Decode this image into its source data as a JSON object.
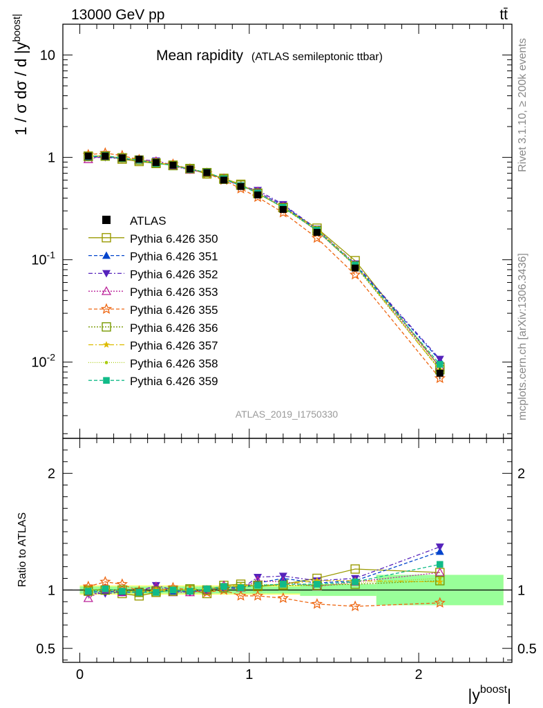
{
  "header": {
    "energy_label": "13000 GeV pp",
    "process_label": "tt̄"
  },
  "side_text": {
    "rivet_label": "Rivet 3.1.10, ≥ 200k events",
    "source_label": "mcplots.cern.ch [arXiv:1306.3436]"
  },
  "chart_data": {
    "type": "line",
    "title": "Mean rapidity",
    "subtitle": "(ATLAS semileptonic ttbar)",
    "analysis_label": "ATLAS_2019_I1750330",
    "xlabel": "|y^boost|",
    "ylabel": "1 / σ dσ / d |y^boost|",
    "ratio_ylabel": "Ratio to ATLAS",
    "xlim": [
      -0.1,
      2.55
    ],
    "ylim": [
      0.0018,
      20
    ],
    "ratio_ylim": [
      0.38,
      2.3
    ],
    "y_scale": "log",
    "x_ticks": [
      0,
      1,
      2
    ],
    "main_y_tick_labels": [
      "10^-2",
      "10^-1",
      "1",
      "10"
    ],
    "ratio_y_ticks": [
      0.5,
      1,
      2
    ],
    "legend_position": "center-left",
    "x": [
      0.05,
      0.15,
      0.25,
      0.35,
      0.45,
      0.55,
      0.65,
      0.75,
      0.85,
      0.95,
      1.05,
      1.2,
      1.4,
      1.625,
      2.125
    ],
    "bin_edges": [
      0.0,
      0.1,
      0.2,
      0.3,
      0.4,
      0.5,
      0.6,
      0.7,
      0.8,
      0.9,
      1.0,
      1.1,
      1.3,
      1.5,
      1.75,
      2.5
    ],
    "data": {
      "name": "ATLAS",
      "values": [
        1.03,
        1.03,
        0.99,
        0.96,
        0.89,
        0.84,
        0.77,
        0.71,
        0.6,
        0.52,
        0.43,
        0.31,
        0.185,
        0.083,
        0.0078
      ],
      "stat_band": [
        0.03,
        0.03,
        0.03,
        0.03,
        0.03,
        0.03,
        0.03,
        0.03,
        0.03,
        0.03,
        0.03,
        0.03,
        0.05,
        0.05,
        0.13
      ],
      "total_band": [
        0.04,
        0.04,
        0.04,
        0.04,
        0.04,
        0.04,
        0.04,
        0.04,
        0.04,
        0.04,
        0.04,
        0.04,
        0.05,
        0.05,
        0.13
      ]
    },
    "series": [
      {
        "name": "Pythia 6.426 350",
        "color": "#999900",
        "marker": "square-open",
        "dash": "",
        "ratio": [
          1.0,
          1.0,
          0.97,
          0.95,
          0.98,
          1.0,
          1.0,
          0.97,
          1.04,
          1.05,
          1.03,
          1.05,
          1.1,
          1.18,
          1.15
        ]
      },
      {
        "name": "Pythia 6.426 351",
        "color": "#0044cc",
        "marker": "triangle-up",
        "dash": "5,3",
        "ratio": [
          0.98,
          0.99,
          0.98,
          0.98,
          1.0,
          0.99,
          0.99,
          1.0,
          1.02,
          1.02,
          1.06,
          1.1,
          1.06,
          1.08,
          1.33
        ]
      },
      {
        "name": "Pythia 6.426 352",
        "color": "#5522bb",
        "marker": "triangle-down",
        "dash": "6,3,2,3",
        "ratio": [
          0.97,
          0.97,
          0.98,
          0.99,
          1.04,
          1.0,
          0.98,
          1.0,
          1.02,
          1.01,
          1.11,
          1.12,
          1.08,
          1.1,
          1.37
        ]
      },
      {
        "name": "Pythia 6.426 353",
        "color": "#bb2299",
        "marker": "triangle-up-open",
        "dash": "2,2",
        "ratio": [
          0.93,
          1.01,
          0.98,
          0.99,
          1.03,
          0.98,
          0.98,
          1.0,
          1.04,
          1.02,
          1.08,
          1.07,
          1.03,
          1.07,
          1.15
        ]
      },
      {
        "name": "Pythia 6.426 355",
        "color": "#ee6611",
        "marker": "star-open",
        "dash": "5,3",
        "ratio": [
          1.03,
          1.07,
          1.05,
          0.99,
          0.99,
          1.02,
          1.0,
          0.98,
          1.0,
          0.95,
          0.95,
          0.93,
          0.88,
          0.86,
          0.89
        ]
      },
      {
        "name": "Pythia 6.426 356",
        "color": "#779900",
        "marker": "square-open",
        "dash": "2,2",
        "ratio": [
          0.99,
          1.0,
          1.0,
          0.98,
          0.99,
          0.99,
          1.01,
          1.0,
          1.02,
          1.03,
          1.04,
          1.04,
          1.04,
          1.05,
          1.08
        ]
      },
      {
        "name": "Pythia 6.426 357",
        "color": "#ddbb00",
        "marker": "star-small",
        "dash": "7,3,2,3",
        "ratio": [
          1.0,
          1.01,
          0.99,
          0.98,
          1.0,
          1.0,
          1.0,
          1.01,
          1.03,
          1.04,
          1.04,
          1.05,
          1.08,
          1.08,
          1.07
        ]
      },
      {
        "name": "Pythia 6.426 358",
        "color": "#aacc11",
        "marker": "dot",
        "dash": "1,2",
        "ratio": [
          1.0,
          1.0,
          1.0,
          0.99,
          0.99,
          1.0,
          1.0,
          1.0,
          1.03,
          1.04,
          1.05,
          1.04,
          1.04,
          1.06,
          1.1
        ]
      },
      {
        "name": "Pythia 6.426 359",
        "color": "#11bb88",
        "marker": "square",
        "dash": "5,3",
        "ratio": [
          0.99,
          1.01,
          0.99,
          0.98,
          0.98,
          1.0,
          0.99,
          1.01,
          1.03,
          1.02,
          1.04,
          1.05,
          1.05,
          1.07,
          1.22
        ]
      }
    ],
    "band_colors": {
      "total": "#ffff77",
      "stat": "#99ff99"
    }
  }
}
